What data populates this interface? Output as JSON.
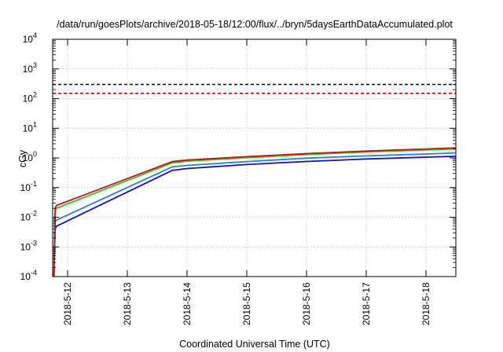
{
  "chart_data": {
    "type": "line",
    "title": "/data/run/goesPlots/archive/2018-05-18/12:00/flux/../bryn/5daysEarthDataAccumulated.plot",
    "xlabel": "Coordinated Universal Time (UTC)",
    "ylabel": "cGy",
    "y_scale": "log",
    "ylim": [
      0.0001,
      10000
    ],
    "xlim": [
      "2018-05-11 18:00",
      "2018-05-18 12:00"
    ],
    "grid": true,
    "x_ticks": [
      "2018-5-12",
      "2018-5-13",
      "2018-5-14",
      "2018-5-15",
      "2018-5-16",
      "2018-5-17",
      "2018-5-18"
    ],
    "y_ticks": [
      {
        "value": 0.0001,
        "base": "10",
        "exp": "-4"
      },
      {
        "value": 0.001,
        "base": "10",
        "exp": "-3"
      },
      {
        "value": 0.01,
        "base": "10",
        "exp": "-2"
      },
      {
        "value": 0.1,
        "base": "10",
        "exp": "-1"
      },
      {
        "value": 1,
        "base": "10",
        "exp": "0"
      },
      {
        "value": 10,
        "base": "10",
        "exp": "1"
      },
      {
        "value": 100,
        "base": "10",
        "exp": "2"
      },
      {
        "value": 1000,
        "base": "10",
        "exp": "3"
      },
      {
        "value": 10000,
        "base": "10",
        "exp": "4"
      }
    ],
    "thresholds": [
      {
        "value": 300,
        "color": "#000000",
        "dash": true
      },
      {
        "value": 150,
        "color": "#e00000",
        "dash": true
      }
    ],
    "series": [
      {
        "color": "#d01010",
        "x": [
          "2018-05-11 18:30",
          "2018-05-11 19:00",
          "2018-05-11 19:30",
          "2018-05-13 18:00",
          "2018-05-14 00:00",
          "2018-05-15 00:00",
          "2018-05-16 00:00",
          "2018-05-17 00:00",
          "2018-05-18 00:00",
          "2018-05-18 12:00"
        ],
        "y": [
          0.0001,
          0.02,
          0.025,
          0.75,
          0.85,
          1.1,
          1.4,
          1.7,
          2.0,
          2.2
        ]
      },
      {
        "color": "#20cc20",
        "x": [
          "2018-05-11 18:30",
          "2018-05-11 19:00",
          "2018-05-11 19:30",
          "2018-05-13 18:00",
          "2018-05-14 00:00",
          "2018-05-15 00:00",
          "2018-05-16 00:00",
          "2018-05-17 00:00",
          "2018-05-18 00:00",
          "2018-05-18 12:00"
        ],
        "y": [
          0.0001,
          0.016,
          0.02,
          0.68,
          0.78,
          1.02,
          1.3,
          1.6,
          1.85,
          2.0
        ]
      },
      {
        "color": "#2a7ae0",
        "x": [
          "2018-05-11 18:30",
          "2018-05-11 19:00",
          "2018-05-11 19:30",
          "2018-05-13 18:00",
          "2018-05-14 00:00",
          "2018-05-15 00:00",
          "2018-05-16 00:00",
          "2018-05-17 00:00",
          "2018-05-18 00:00",
          "2018-05-18 12:00"
        ],
        "y": [
          0.0001,
          0.007,
          0.008,
          0.5,
          0.56,
          0.75,
          0.98,
          1.17,
          1.36,
          1.48
        ]
      },
      {
        "color": "#1010c8",
        "x": [
          "2018-05-11 18:30",
          "2018-05-11 19:00",
          "2018-05-11 19:30",
          "2018-05-13 18:00",
          "2018-05-14 00:00",
          "2018-05-15 00:00",
          "2018-05-16 00:00",
          "2018-05-17 00:00",
          "2018-05-18 00:00",
          "2018-05-18 12:00"
        ],
        "y": [
          0.0001,
          0.004,
          0.005,
          0.38,
          0.44,
          0.6,
          0.76,
          0.92,
          1.06,
          1.14
        ]
      }
    ]
  }
}
